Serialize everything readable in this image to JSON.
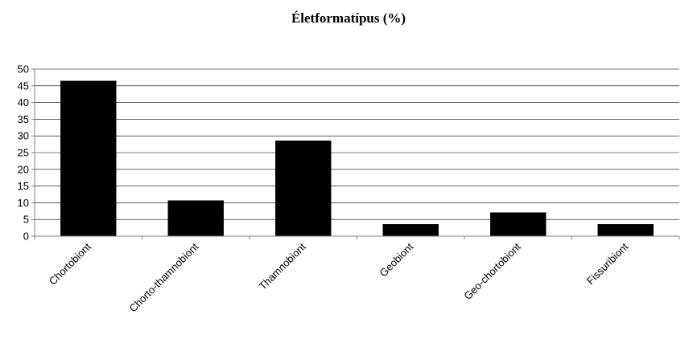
{
  "chart_data": {
    "type": "bar",
    "title": "Életformatípus (%)",
    "categories": [
      "Chortobiont",
      "Chorto-thamnobiont",
      "Thamnobiont",
      "Geobiont",
      "Geo-chortobiont",
      "Fissuribiont"
    ],
    "values": [
      46.5,
      10.7,
      28.6,
      3.6,
      7.1,
      3.6
    ],
    "xlabel": "",
    "ylabel": "",
    "ylim": [
      0,
      50
    ],
    "yticks": [
      0,
      5,
      10,
      15,
      20,
      25,
      30,
      35,
      40,
      45,
      50
    ],
    "grid": true,
    "legend": "none",
    "bar_color": "#000000"
  }
}
